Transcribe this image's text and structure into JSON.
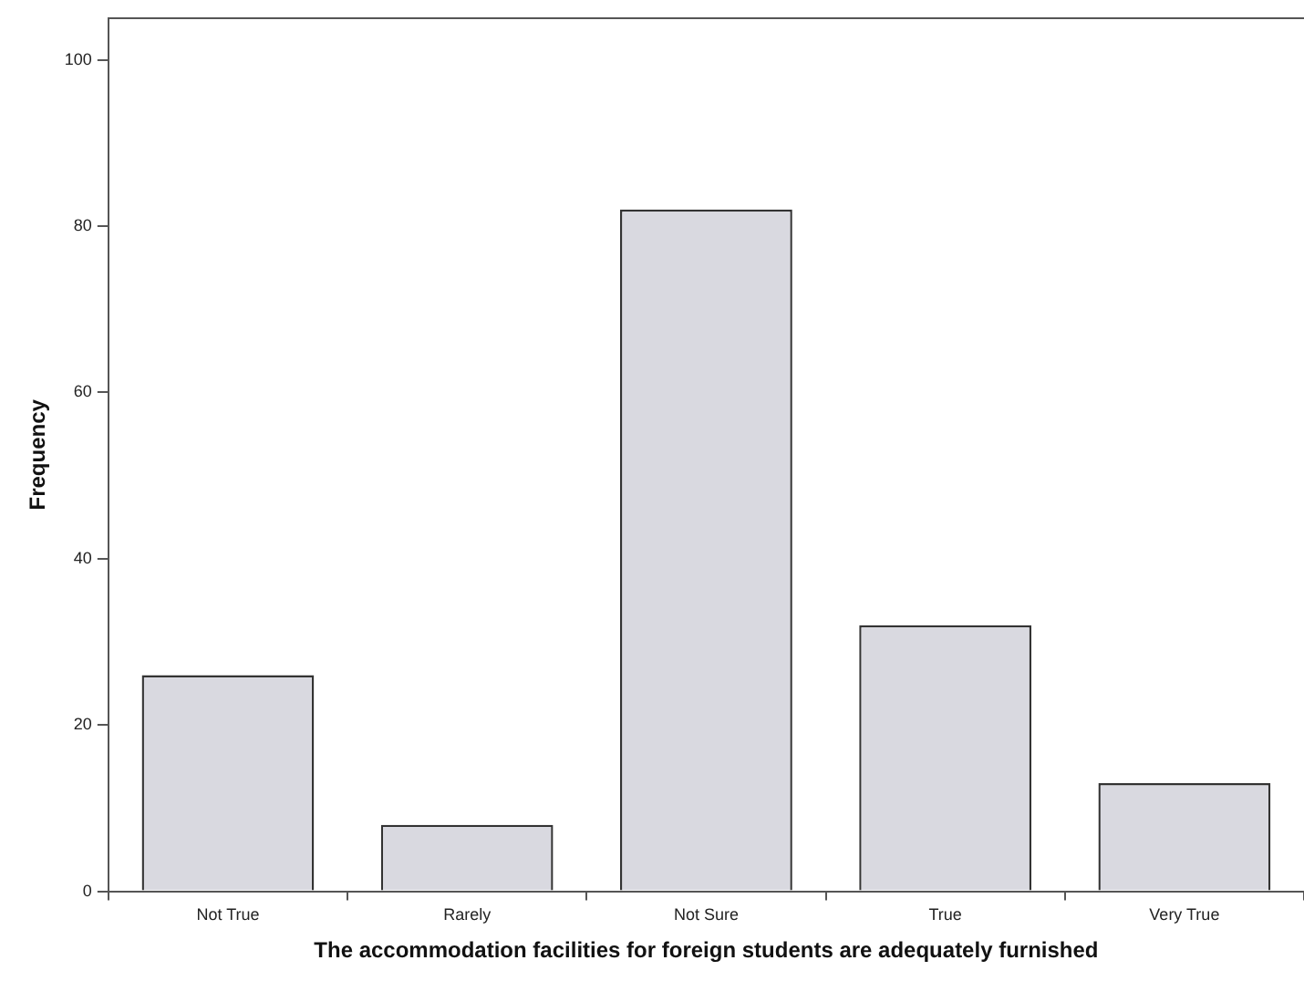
{
  "chart_data": {
    "type": "bar",
    "xlabel": "The accommodation facilities for foreign students are adequately furnished",
    "ylabel": "Frequency",
    "categories": [
      "Not True",
      "Rarely",
      "Not Sure",
      "True",
      "Very True"
    ],
    "values": [
      26,
      8,
      82,
      32,
      13
    ],
    "color": "#d9d9e0",
    "ylim": [
      0,
      105
    ],
    "yticks": [
      0,
      20,
      40,
      60,
      80,
      100
    ],
    "grid": false,
    "legend": false
  }
}
